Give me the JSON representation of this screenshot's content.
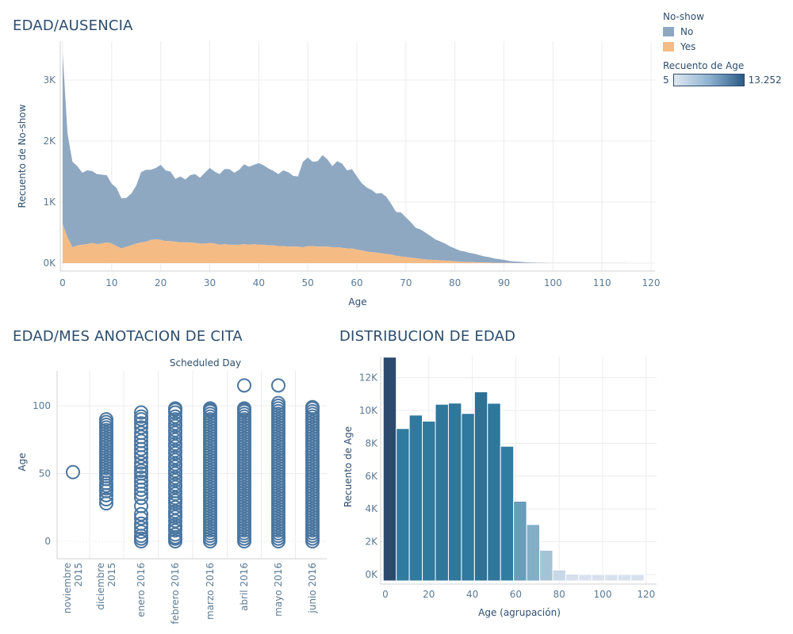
{
  "titles": {
    "area": "EDAD/AUSENCIA",
    "scatter": "EDAD/MES ANOTACION DE CITA",
    "hist": "DISTRIBUCION DE EDAD"
  },
  "legend": {
    "noshow_title": "No-show",
    "no_label": "No",
    "yes_label": "Yes",
    "no_color": "#8fa8c2",
    "yes_color": "#f5bb85",
    "count_title": "Recuento de Age",
    "count_min": "5",
    "count_max": "13.252",
    "count_color_low": "#d9e2ee",
    "count_color_high": "#2b5a86"
  },
  "chart_data": [
    {
      "type": "area",
      "title": "EDAD/AUSENCIA",
      "xlabel": "Age",
      "ylabel": "Recuento de No-show",
      "xlim": [
        0,
        120
      ],
      "ylim": [
        0,
        3500
      ],
      "x_ticks": [
        "0",
        "10",
        "20",
        "30",
        "40",
        "50",
        "60",
        "70",
        "80",
        "90",
        "100",
        "110",
        "120"
      ],
      "y_ticks": [
        "0K",
        "1K",
        "2K",
        "3K"
      ],
      "stacked": true,
      "series": [
        {
          "name": "No",
          "x": [
            0,
            1,
            2,
            3,
            4,
            5,
            6,
            7,
            8,
            9,
            10,
            11,
            12,
            13,
            14,
            15,
            16,
            17,
            18,
            19,
            20,
            21,
            22,
            23,
            24,
            25,
            26,
            27,
            28,
            29,
            30,
            31,
            32,
            33,
            34,
            35,
            36,
            37,
            38,
            39,
            40,
            41,
            42,
            43,
            44,
            45,
            46,
            47,
            48,
            49,
            50,
            51,
            52,
            53,
            54,
            55,
            56,
            57,
            58,
            59,
            60,
            61,
            62,
            63,
            64,
            65,
            66,
            67,
            68,
            69,
            70,
            71,
            72,
            73,
            74,
            75,
            76,
            77,
            78,
            79,
            80,
            81,
            82,
            83,
            84,
            85,
            86,
            87,
            88,
            89,
            90,
            91,
            92,
            93,
            94,
            95,
            96,
            97,
            98,
            99,
            100,
            101,
            102,
            103,
            104,
            105,
            106,
            107,
            108,
            109,
            110,
            111,
            112,
            113,
            114,
            115
          ],
          "values": [
            2800,
            1700,
            1400,
            1300,
            1180,
            1210,
            1180,
            1150,
            1130,
            1100,
            980,
            950,
            820,
            800,
            850,
            950,
            1150,
            1180,
            1150,
            1170,
            1230,
            1160,
            1140,
            1030,
            1080,
            1030,
            1100,
            1130,
            1080,
            1160,
            1230,
            1180,
            1160,
            1230,
            1240,
            1180,
            1230,
            1310,
            1280,
            1300,
            1340,
            1300,
            1260,
            1220,
            1180,
            1240,
            1220,
            1160,
            1150,
            1400,
            1450,
            1380,
            1400,
            1500,
            1430,
            1330,
            1410,
            1380,
            1280,
            1300,
            1200,
            1100,
            1050,
            1020,
            970,
            990,
            940,
            830,
            720,
            720,
            650,
            580,
            500,
            480,
            440,
            390,
            340,
            310,
            280,
            240,
            210,
            180,
            170,
            150,
            140,
            120,
            100,
            90,
            70,
            60,
            50,
            35,
            25,
            20,
            15,
            10,
            8,
            6,
            5,
            3,
            2,
            2,
            1,
            1,
            1,
            1,
            1,
            1,
            1,
            1,
            1,
            1,
            1,
            1,
            1,
            1
          ]
        },
        {
          "name": "Yes",
          "x": [
            0,
            1,
            2,
            3,
            4,
            5,
            6,
            7,
            8,
            9,
            10,
            11,
            12,
            13,
            14,
            15,
            16,
            17,
            18,
            19,
            20,
            21,
            22,
            23,
            24,
            25,
            26,
            27,
            28,
            29,
            30,
            31,
            32,
            33,
            34,
            35,
            36,
            37,
            38,
            39,
            40,
            41,
            42,
            43,
            44,
            45,
            46,
            47,
            48,
            49,
            50,
            51,
            52,
            53,
            54,
            55,
            56,
            57,
            58,
            59,
            60,
            61,
            62,
            63,
            64,
            65,
            66,
            67,
            68,
            69,
            70,
            71,
            72,
            73,
            74,
            75,
            76,
            77,
            78,
            79,
            80,
            81,
            82,
            83,
            84,
            85,
            86,
            87,
            88,
            89,
            90,
            91,
            92,
            93,
            94,
            95,
            96,
            97,
            98,
            99,
            100,
            101,
            102,
            103,
            104,
            105,
            106,
            107,
            108,
            109,
            110,
            111,
            112,
            113,
            114,
            115
          ],
          "values": [
            640,
            420,
            260,
            290,
            300,
            310,
            330,
            310,
            320,
            340,
            320,
            280,
            240,
            270,
            290,
            320,
            340,
            350,
            380,
            390,
            380,
            360,
            360,
            350,
            340,
            340,
            340,
            330,
            320,
            320,
            330,
            320,
            300,
            310,
            300,
            300,
            300,
            310,
            300,
            310,
            300,
            300,
            290,
            290,
            280,
            280,
            270,
            270,
            270,
            260,
            280,
            280,
            270,
            270,
            270,
            260,
            260,
            250,
            240,
            240,
            220,
            210,
            190,
            180,
            170,
            160,
            150,
            140,
            120,
            110,
            100,
            90,
            80,
            70,
            60,
            55,
            50,
            45,
            40,
            35,
            30,
            25,
            20,
            18,
            15,
            12,
            10,
            8,
            6,
            5,
            4,
            3,
            2,
            2,
            1,
            1,
            1,
            1,
            1,
            1,
            0,
            0,
            0,
            0,
            0,
            0,
            0,
            0,
            0,
            0,
            0,
            0,
            0,
            0,
            0,
            0
          ]
        }
      ]
    },
    {
      "type": "scatter",
      "title": "EDAD/MES ANOTACION DE CITA",
      "header": "Scheduled Day",
      "ylabel": "Age",
      "ylim": [
        -20,
        125
      ],
      "y_ticks": [
        "0",
        "50",
        "100"
      ],
      "categories": [
        "noviembre 2015",
        "diciembre 2015",
        "enero 2016",
        "febrero 2016",
        "marzo 2016",
        "abril 2016",
        "mayo 2016",
        "junio 2016"
      ],
      "category_labels": [
        [
          "noviembre",
          "2015"
        ],
        [
          "diciembre",
          "2015"
        ],
        [
          "enero 2016"
        ],
        [
          "febrero 2016"
        ],
        [
          "marzo 2016"
        ],
        [
          "abril 2016"
        ],
        [
          "mayo 2016"
        ],
        [
          "junio 2016"
        ]
      ],
      "series": [
        {
          "category": "noviembre 2015",
          "ages": [
            51
          ]
        },
        {
          "category": "diciembre 2015",
          "ages": [
            28,
            31,
            34,
            37,
            39,
            41,
            43,
            46,
            48,
            50,
            52,
            54,
            56,
            58,
            60,
            62,
            64,
            66,
            68,
            70,
            72,
            74,
            76,
            78,
            80,
            82,
            84,
            86,
            88,
            90
          ]
        },
        {
          "category": "enero 2016",
          "ages": [
            0,
            2,
            4,
            7,
            10,
            13,
            17,
            20,
            26,
            32,
            35,
            38,
            41,
            44,
            47,
            50,
            52,
            55,
            58,
            62,
            65,
            68,
            71,
            74,
            77,
            80,
            84,
            87,
            90,
            92,
            95
          ]
        },
        {
          "category": "febrero 2016",
          "ages": [
            0,
            2,
            3,
            5,
            8,
            10,
            12,
            15,
            18,
            20,
            22,
            25,
            28,
            30,
            32,
            35,
            37,
            40,
            42,
            45,
            47,
            50,
            52,
            55,
            57,
            60,
            62,
            65,
            67,
            70,
            72,
            75,
            77,
            80,
            82,
            85,
            87,
            90,
            92,
            95,
            97,
            98
          ]
        },
        {
          "category": "marzo 2016",
          "ages": [
            0,
            2,
            4,
            6,
            8,
            10,
            12,
            14,
            16,
            18,
            20,
            22,
            24,
            26,
            28,
            30,
            32,
            34,
            36,
            38,
            40,
            42,
            44,
            46,
            48,
            50,
            52,
            54,
            56,
            58,
            60,
            62,
            64,
            66,
            68,
            70,
            72,
            74,
            76,
            78,
            80,
            82,
            84,
            86,
            88,
            90,
            92,
            94,
            96,
            97,
            98
          ]
        },
        {
          "category": "abril 2016",
          "ages": [
            0,
            2,
            4,
            6,
            8,
            10,
            12,
            14,
            16,
            18,
            20,
            22,
            24,
            26,
            28,
            30,
            32,
            34,
            36,
            38,
            40,
            42,
            44,
            46,
            48,
            50,
            52,
            54,
            56,
            58,
            60,
            62,
            64,
            66,
            68,
            70,
            72,
            74,
            76,
            78,
            80,
            82,
            84,
            86,
            88,
            90,
            92,
            94,
            96,
            97,
            98,
            115
          ]
        },
        {
          "category": "mayo 2016",
          "ages": [
            0,
            2,
            4,
            6,
            8,
            10,
            12,
            14,
            16,
            18,
            20,
            22,
            24,
            26,
            28,
            30,
            32,
            34,
            36,
            38,
            40,
            42,
            44,
            46,
            48,
            50,
            52,
            54,
            56,
            58,
            60,
            62,
            64,
            66,
            68,
            70,
            72,
            74,
            76,
            78,
            80,
            82,
            84,
            86,
            88,
            90,
            92,
            94,
            96,
            98,
            100,
            102,
            115
          ]
        },
        {
          "category": "junio 2016",
          "ages": [
            0,
            2,
            4,
            6,
            8,
            10,
            12,
            14,
            16,
            18,
            20,
            22,
            24,
            26,
            28,
            30,
            32,
            34,
            36,
            38,
            40,
            42,
            44,
            46,
            48,
            50,
            52,
            54,
            56,
            58,
            60,
            62,
            64,
            66,
            68,
            70,
            72,
            74,
            76,
            78,
            80,
            82,
            84,
            86,
            88,
            90,
            92,
            94,
            96,
            98,
            99
          ]
        }
      ]
    },
    {
      "type": "bar",
      "title": "DISTRIBUCION DE EDAD",
      "xlabel": "Age (agrupación)",
      "ylabel": "Recuento de Age",
      "xlim": [
        -2,
        125
      ],
      "ylim": [
        -600,
        13500
      ],
      "x_ticks": [
        "0",
        "20",
        "40",
        "60",
        "80",
        "100",
        "120"
      ],
      "y_ticks": [
        "0K",
        "2K",
        "4K",
        "6K",
        "8K",
        "10K",
        "12K"
      ],
      "bin_starts": [
        0,
        6,
        12,
        18,
        24,
        30,
        36,
        42,
        48,
        54,
        60,
        66,
        72,
        78,
        84,
        90,
        96,
        102,
        108,
        114
      ],
      "values": [
        13252,
        8900,
        9720,
        9350,
        10380,
        10450,
        9820,
        11140,
        10440,
        7820,
        4470,
        3050,
        1480,
        280,
        30,
        5,
        5,
        5,
        5,
        5
      ]
    }
  ]
}
